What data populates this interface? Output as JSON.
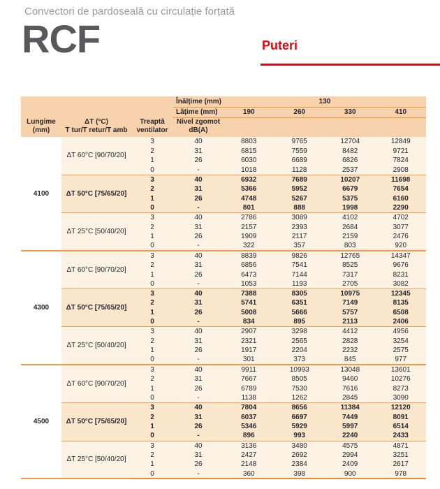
{
  "page": {
    "subtitle": "Convectori de pardoseală cu circulație forțată",
    "model": "RCF",
    "section": "Puteri"
  },
  "colors": {
    "accent_red": "#E30613",
    "header_bg": "#F8D2AC",
    "row_bg": "#FCF2E4",
    "bold_row_bg": "#FAE6CA",
    "line_orange": "#EDA05A",
    "rcf_gray": "#59595C",
    "title_gray": "#9B9B9D"
  },
  "table": {
    "header": {
      "inaltime_label": "Înălțime (mm)",
      "inaltime_value": "130",
      "latime_label": "Lățime (mm)",
      "widths": [
        "190",
        "260",
        "330",
        "410"
      ],
      "lungime_label": "Lungime\n(mm)",
      "dt_label": "ΔT (°C)\nT tur/T retur/T amb",
      "treapta_label": "Treaptă\nventilator",
      "zgomot_label": "Nivel zgomot\ndB(A)"
    },
    "groups": [
      {
        "lungime": "4100",
        "dt_blocks": [
          {
            "dt": "ΔT 60°C [90/70/20]",
            "bold": false,
            "rows": [
              {
                "treapta": "3",
                "zgomot": "40",
                "values": [
                  "8803",
                  "9765",
                  "12704",
                  "12849"
                ]
              },
              {
                "treapta": "2",
                "zgomot": "31",
                "values": [
                  "6815",
                  "7559",
                  "8482",
                  "9721"
                ]
              },
              {
                "treapta": "1",
                "zgomot": "26",
                "values": [
                  "6030",
                  "6689",
                  "6826",
                  "7824"
                ]
              },
              {
                "treapta": "0",
                "zgomot": "-",
                "values": [
                  "1018",
                  "1128",
                  "2537",
                  "2908"
                ]
              }
            ]
          },
          {
            "dt": "ΔT 50°C [75/65/20]",
            "bold": true,
            "rows": [
              {
                "treapta": "3",
                "zgomot": "40",
                "values": [
                  "6932",
                  "7689",
                  "10207",
                  "11698"
                ]
              },
              {
                "treapta": "2",
                "zgomot": "31",
                "values": [
                  "5366",
                  "5952",
                  "6679",
                  "7654"
                ]
              },
              {
                "treapta": "1",
                "zgomot": "26",
                "values": [
                  "4748",
                  "5267",
                  "5375",
                  "6160"
                ]
              },
              {
                "treapta": "0",
                "zgomot": "-",
                "values": [
                  "801",
                  "888",
                  "1998",
                  "2290"
                ]
              }
            ]
          },
          {
            "dt": "ΔT 25°C [50/40/20]",
            "bold": false,
            "rows": [
              {
                "treapta": "3",
                "zgomot": "40",
                "values": [
                  "2786",
                  "3089",
                  "4102",
                  "4702"
                ]
              },
              {
                "treapta": "2",
                "zgomot": "31",
                "values": [
                  "2157",
                  "2393",
                  "2684",
                  "3077"
                ]
              },
              {
                "treapta": "1",
                "zgomot": "26",
                "values": [
                  "1909",
                  "2117",
                  "2159",
                  "2476"
                ]
              },
              {
                "treapta": "0",
                "zgomot": "-",
                "values": [
                  "322",
                  "357",
                  "803",
                  "920"
                ]
              }
            ]
          }
        ]
      },
      {
        "lungime": "4300",
        "dt_blocks": [
          {
            "dt": "ΔT 60°C [90/70/20]",
            "bold": false,
            "rows": [
              {
                "treapta": "3",
                "zgomot": "40",
                "values": [
                  "8839",
                  "9826",
                  "12765",
                  "14347"
                ]
              },
              {
                "treapta": "2",
                "zgomot": "31",
                "values": [
                  "6856",
                  "7541",
                  "8525",
                  "9676"
                ]
              },
              {
                "treapta": "1",
                "zgomot": "26",
                "values": [
                  "6473",
                  "7144",
                  "7317",
                  "8231"
                ]
              },
              {
                "treapta": "0",
                "zgomot": "-",
                "values": [
                  "1053",
                  "1193",
                  "2705",
                  "3082"
                ]
              }
            ]
          },
          {
            "dt": "ΔT 50°C [75/65/20]",
            "bold": true,
            "rows": [
              {
                "treapta": "3",
                "zgomot": "40",
                "values": [
                  "7388",
                  "8305",
                  "10975",
                  "12345"
                ]
              },
              {
                "treapta": "2",
                "zgomot": "31",
                "values": [
                  "5741",
                  "6351",
                  "7149",
                  "8135"
                ]
              },
              {
                "treapta": "1",
                "zgomot": "26",
                "values": [
                  "5008",
                  "5666",
                  "5757",
                  "6508"
                ]
              },
              {
                "treapta": "0",
                "zgomot": "-",
                "values": [
                  "834",
                  "895",
                  "2113",
                  "2406"
                ]
              }
            ]
          },
          {
            "dt": "ΔT 25°C [50/40/20]",
            "bold": false,
            "rows": [
              {
                "treapta": "3",
                "zgomot": "40",
                "values": [
                  "2907",
                  "3298",
                  "4412",
                  "4956"
                ]
              },
              {
                "treapta": "2",
                "zgomot": "31",
                "values": [
                  "2321",
                  "2565",
                  "2828",
                  "3254"
                ]
              },
              {
                "treapta": "1",
                "zgomot": "26",
                "values": [
                  "1917",
                  "2204",
                  "2232",
                  "2575"
                ]
              },
              {
                "treapta": "0",
                "zgomot": "-",
                "values": [
                  "301",
                  "373",
                  "845",
                  "977"
                ]
              }
            ]
          }
        ]
      },
      {
        "lungime": "4500",
        "dt_blocks": [
          {
            "dt": "ΔT 60°C [90/70/20]",
            "bold": false,
            "rows": [
              {
                "treapta": "3",
                "zgomot": "40",
                "values": [
                  "9911",
                  "10993",
                  "13048",
                  "13601"
                ]
              },
              {
                "treapta": "2",
                "zgomot": "31",
                "values": [
                  "7667",
                  "8505",
                  "9460",
                  "10276"
                ]
              },
              {
                "treapta": "1",
                "zgomot": "26",
                "values": [
                  "6789",
                  "7530",
                  "7616",
                  "8273"
                ]
              },
              {
                "treapta": "0",
                "zgomot": "-",
                "values": [
                  "1138",
                  "1262",
                  "2845",
                  "3090"
                ]
              }
            ]
          },
          {
            "dt": "ΔT 50°C [75/65/20]",
            "bold": true,
            "rows": [
              {
                "treapta": "3",
                "zgomot": "40",
                "values": [
                  "7804",
                  "8656",
                  "11384",
                  "12120"
                ]
              },
              {
                "treapta": "2",
                "zgomot": "31",
                "values": [
                  "6037",
                  "6697",
                  "7449",
                  "8091"
                ]
              },
              {
                "treapta": "1",
                "zgomot": "26",
                "values": [
                  "5346",
                  "5929",
                  "5997",
                  "6514"
                ]
              },
              {
                "treapta": "0",
                "zgomot": "-",
                "values": [
                  "896",
                  "993",
                  "2240",
                  "2433"
                ]
              }
            ]
          },
          {
            "dt": "ΔT 25°C [50/40/20]",
            "bold": false,
            "rows": [
              {
                "treapta": "3",
                "zgomot": "40",
                "values": [
                  "3136",
                  "3480",
                  "4575",
                  "4871"
                ]
              },
              {
                "treapta": "2",
                "zgomot": "31",
                "values": [
                  "2427",
                  "2692",
                  "2994",
                  "3251"
                ]
              },
              {
                "treapta": "1",
                "zgomot": "26",
                "values": [
                  "2148",
                  "2384",
                  "2409",
                  "2617"
                ]
              },
              {
                "treapta": "0",
                "zgomot": "-",
                "values": [
                  "360",
                  "398",
                  "900",
                  "978"
                ]
              }
            ]
          }
        ]
      }
    ]
  }
}
